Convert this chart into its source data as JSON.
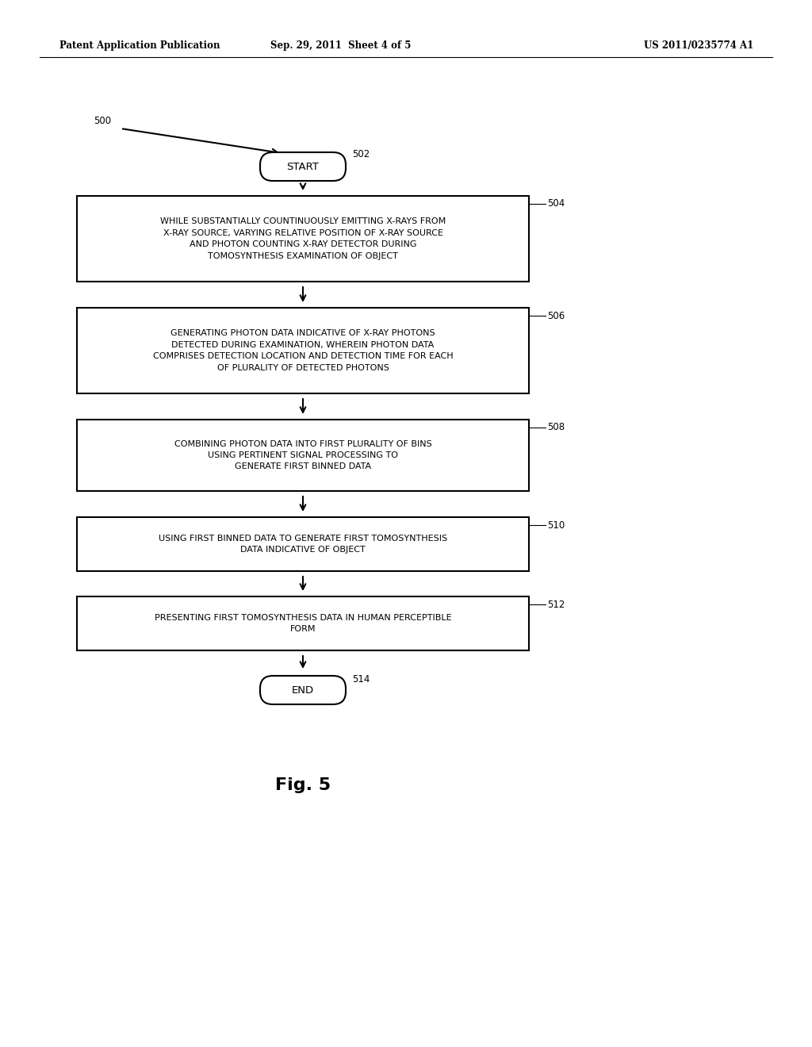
{
  "background_color": "#ffffff",
  "header_left": "Patent Application Publication",
  "header_center": "Sep. 29, 2011  Sheet 4 of 5",
  "header_right": "US 2011/0235774 A1",
  "fig_label": "Fig. 5",
  "diagram_label": "500",
  "start_label": "502",
  "end_label": "514",
  "start_text": "START",
  "end_text": "END",
  "boxes": [
    {
      "id": "504",
      "label": "504",
      "text": "WHILE SUBSTANTIALLY COUNTINUOUSLY EMITTING X-RAYS FROM\nX-RAY SOURCE, VARYING RELATIVE POSITION OF X-RAY SOURCE\nAND PHOTON COUNTING X-RAY DETECTOR DURING\nTOMOSYNTHESIS EXAMINATION OF OBJECT"
    },
    {
      "id": "506",
      "label": "506",
      "text": "GENERATING PHOTON DATA INDICATIVE OF X-RAY PHOTONS\nDETECTED DURING EXAMINATION, WHEREIN PHOTON DATA\nCOMPRISES DETECTION LOCATION AND DETECTION TIME FOR EACH\nOF PLURALITY OF DETECTED PHOTONS"
    },
    {
      "id": "508",
      "label": "508",
      "text": "COMBINING PHOTON DATA INTO FIRST PLURALITY OF BINS\nUSING PERTINENT SIGNAL PROCESSING TO\nGENERATE FIRST BINNED DATA"
    },
    {
      "id": "510",
      "label": "510",
      "text": "USING FIRST BINNED DATA TO GENERATE FIRST TOMOSYNTHESIS\nDATA INDICATIVE OF OBJECT"
    },
    {
      "id": "512",
      "label": "512",
      "text": "PRESENTING FIRST TOMOSYNTHESIS DATA IN HUMAN PERCEPTIBLE\nFORM"
    }
  ],
  "box_color": "#ffffff",
  "box_edge_color": "#000000",
  "text_color": "#000000",
  "arrow_color": "#000000",
  "font_size_box": 8.0,
  "font_size_header": 8.5,
  "font_size_fig": 16,
  "font_size_label": 8.5,
  "font_size_start_end": 9.5
}
